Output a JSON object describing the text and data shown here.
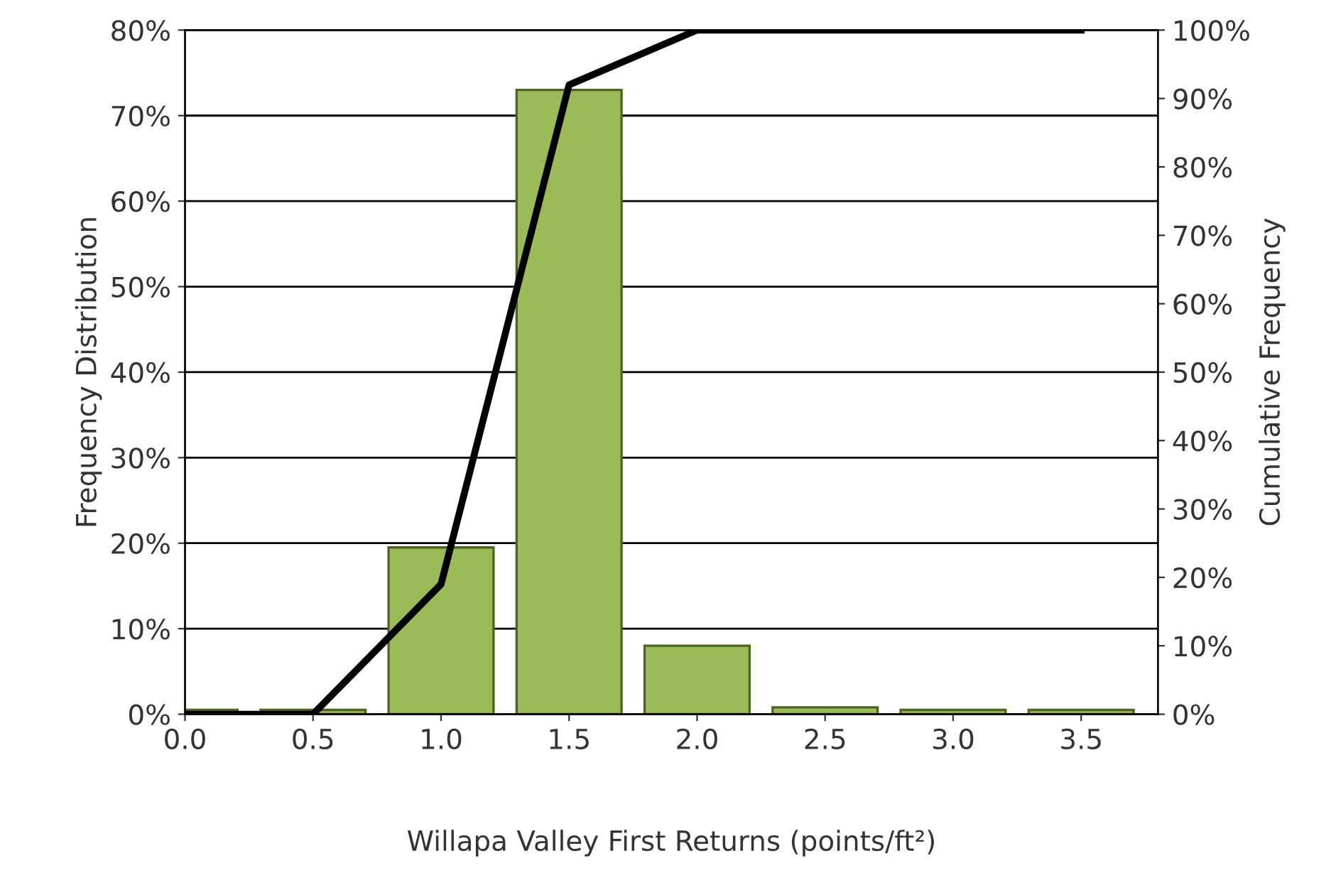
{
  "chart_data": {
    "type": "bar",
    "xlabel": "Willapa Valley First Returns (points/ft²)",
    "ylabel": "Frequency Distribution",
    "y2label": "Cumulative Frequency",
    "x": [
      0.0,
      0.5,
      1.0,
      1.5,
      2.0,
      2.5,
      3.0,
      3.5
    ],
    "xlim": [
      0,
      3.8
    ],
    "xticks": [
      {
        "value": 0,
        "label": "0.0"
      },
      {
        "value": 0.5,
        "label": "0.5"
      },
      {
        "value": 1,
        "label": "1.0"
      },
      {
        "value": 1.5,
        "label": "1.5"
      },
      {
        "value": 2,
        "label": "2.0"
      },
      {
        "value": 2.5,
        "label": "2.5"
      },
      {
        "value": 3,
        "label": "3.0"
      },
      {
        "value": 3.5,
        "label": "3.5"
      }
    ],
    "ylim": [
      0,
      80
    ],
    "yticks": [
      {
        "value": 0,
        "label": "0%"
      },
      {
        "value": 10,
        "label": "10%"
      },
      {
        "value": 20,
        "label": "20%"
      },
      {
        "value": 30,
        "label": "30%"
      },
      {
        "value": 40,
        "label": "40%"
      },
      {
        "value": 50,
        "label": "50%"
      },
      {
        "value": 60,
        "label": "60%"
      },
      {
        "value": 70,
        "label": "70%"
      },
      {
        "value": 80,
        "label": "80%"
      }
    ],
    "y2lim": [
      0,
      100
    ],
    "y2ticks": [
      {
        "value": 0,
        "label": "0%"
      },
      {
        "value": 10,
        "label": "10%"
      },
      {
        "value": 20,
        "label": "20%"
      },
      {
        "value": 30,
        "label": "30%"
      },
      {
        "value": 40,
        "label": "40%"
      },
      {
        "value": 50,
        "label": "50%"
      },
      {
        "value": 60,
        "label": "60%"
      },
      {
        "value": 70,
        "label": "70%"
      },
      {
        "value": 80,
        "label": "80%"
      },
      {
        "value": 90,
        "label": "90%"
      },
      {
        "value": 100,
        "label": "100%"
      }
    ],
    "grid": "y",
    "legend": false,
    "series": [
      {
        "color": "#9bbb59",
        "values": [
          0.5,
          0.5,
          19.5,
          73,
          8,
          0.8,
          0.5,
          0.5
        ]
      },
      {
        "type": "line",
        "axis": "y2",
        "color": "#000000",
        "values": [
          0,
          0,
          19,
          92,
          100,
          100,
          100,
          100
        ]
      }
    ]
  }
}
